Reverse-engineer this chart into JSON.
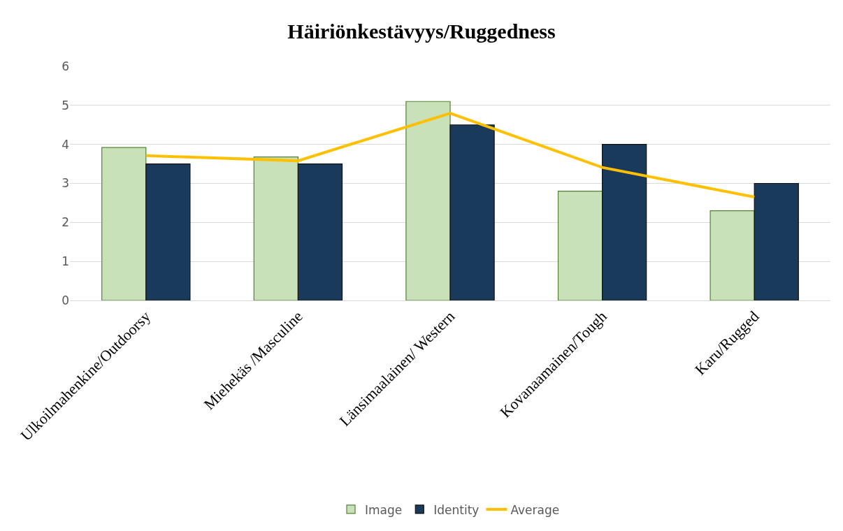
{
  "chart_data": {
    "type": "bar",
    "title": "Häiriönkestävyys/Ruggedness",
    "categories": [
      "Ulkoilmahenkine/Outdoorsy",
      "Miehekäs /Masculine",
      "Länsimaalainen/ Western",
      "Kovanaamainen/Tough",
      "Karu/Rugged"
    ],
    "series": [
      {
        "name": "Image",
        "color": "#c9e1b8",
        "values": [
          3.92,
          3.68,
          5.1,
          2.8,
          2.3
        ]
      },
      {
        "name": "Identity",
        "color": "#1a3a5c",
        "values": [
          3.5,
          3.5,
          4.5,
          4.0,
          3.0
        ]
      },
      {
        "name": "Average",
        "type": "line",
        "color": "#ffc000",
        "values": [
          3.71,
          3.58,
          4.8,
          3.41,
          2.65
        ]
      }
    ],
    "ylim": [
      0,
      6
    ],
    "yticks": [
      0,
      1,
      2,
      3,
      4,
      5,
      6
    ],
    "grid": "y",
    "legend": "bottom",
    "marker": "none"
  }
}
